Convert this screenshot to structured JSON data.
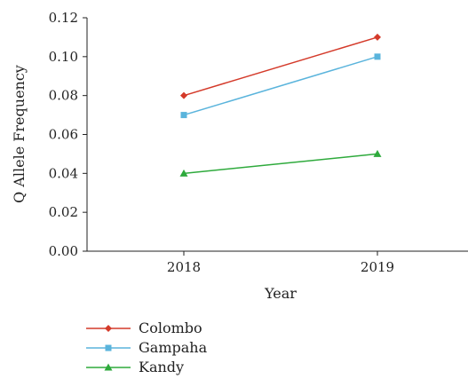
{
  "chart_data": {
    "type": "line",
    "title": "",
    "xlabel": "Year",
    "ylabel": "Q Allele Frequency",
    "categories": [
      "2018",
      "2019"
    ],
    "ylim": [
      0,
      0.12
    ],
    "yticks": [
      "0.00",
      "0.02",
      "0.04",
      "0.06",
      "0.08",
      "0.10",
      "0.12"
    ],
    "grid": false,
    "legend_position": "bottom-left",
    "series": [
      {
        "name": "Colombo",
        "values": [
          0.08,
          0.11
        ],
        "color": "#d43a2a",
        "marker": "diamond"
      },
      {
        "name": "Gampaha",
        "values": [
          0.07,
          0.1
        ],
        "color": "#5ab4dc",
        "marker": "square"
      },
      {
        "name": "Kandy",
        "values": [
          0.04,
          0.05
        ],
        "color": "#2eaa3c",
        "marker": "triangle"
      }
    ]
  }
}
